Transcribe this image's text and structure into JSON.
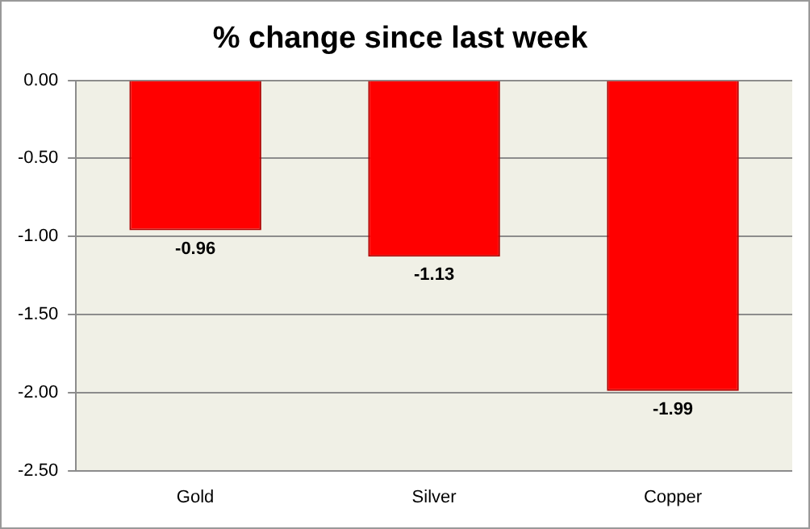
{
  "chart_data": {
    "type": "bar",
    "title": "% change since last week",
    "categories": [
      "Gold",
      "Silver",
      "Copper"
    ],
    "values": [
      -0.96,
      -1.13,
      -1.99
    ],
    "color": "#ff0000",
    "ylim": [
      -2.5,
      0
    ],
    "yticks": [
      {
        "value": 0,
        "label": "0.00"
      },
      {
        "value": -0.5,
        "label": "-0.50"
      },
      {
        "value": -1,
        "label": "-1.00"
      },
      {
        "value": -1.5,
        "label": "-1.50"
      },
      {
        "value": -2,
        "label": "-2.00"
      },
      {
        "value": -2.5,
        "label": "-2.50"
      }
    ],
    "grid": "y",
    "legend": false,
    "data_labels": true
  }
}
